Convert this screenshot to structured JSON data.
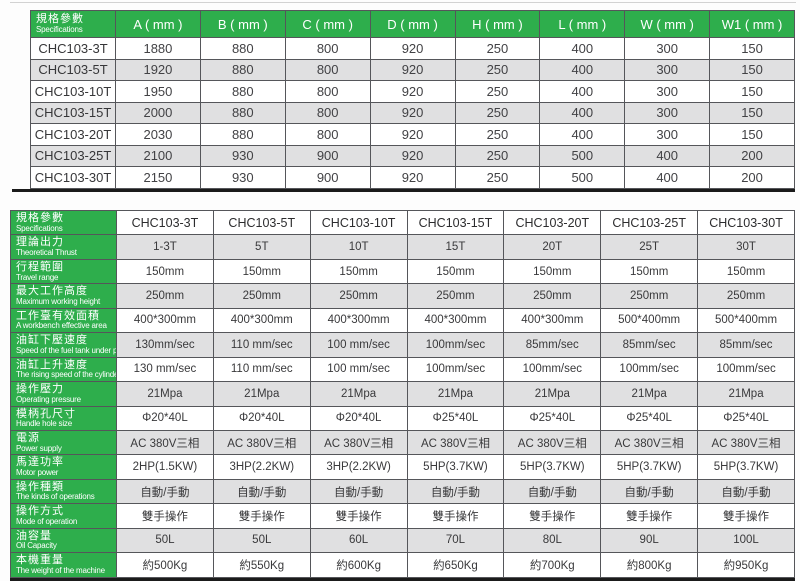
{
  "colors": {
    "green": "#2eae4c",
    "row_alt": "#e0e0e1",
    "border": "#55565a",
    "heavy_rule": "#1b1b1b"
  },
  "table1": {
    "spec_header": {
      "zh": "規格參數",
      "en": "Specifications"
    },
    "columns": [
      "A ( mm )",
      "B ( mm )",
      "C ( mm )",
      "D ( mm )",
      "H ( mm )",
      "L ( mm )",
      "W ( mm )",
      "W1 ( mm )"
    ],
    "rows": [
      {
        "label": "CHC103-3T",
        "values": [
          "1880",
          "880",
          "800",
          "920",
          "250",
          "400",
          "300",
          "150"
        ]
      },
      {
        "label": "CHC103-5T",
        "values": [
          "1920",
          "880",
          "800",
          "920",
          "250",
          "400",
          "300",
          "150"
        ]
      },
      {
        "label": "CHC103-10T",
        "values": [
          "1950",
          "880",
          "800",
          "920",
          "250",
          "400",
          "300",
          "150"
        ]
      },
      {
        "label": "CHC103-15T",
        "values": [
          "2000",
          "880",
          "800",
          "920",
          "250",
          "400",
          "300",
          "150"
        ]
      },
      {
        "label": "CHC103-20T",
        "values": [
          "2030",
          "880",
          "800",
          "920",
          "250",
          "400",
          "300",
          "150"
        ]
      },
      {
        "label": "CHC103-25T",
        "values": [
          "2100",
          "930",
          "900",
          "920",
          "250",
          "500",
          "400",
          "200"
        ]
      },
      {
        "label": "CHC103-30T",
        "values": [
          "2150",
          "930",
          "900",
          "920",
          "250",
          "500",
          "400",
          "200"
        ]
      }
    ]
  },
  "table2": {
    "spec_header": {
      "zh": "規格參數",
      "en": "Specifications"
    },
    "columns": [
      "CHC103-3T",
      "CHC103-5T",
      "CHC103-10T",
      "CHC103-15T",
      "CHC103-20T",
      "CHC103-25T",
      "CHC103-30T"
    ],
    "rows": [
      {
        "zh": "理論出力",
        "en": "Theoretical Thrust",
        "values": [
          "1-3T",
          "5T",
          "10T",
          "15T",
          "20T",
          "25T",
          "30T"
        ]
      },
      {
        "zh": "行程範圍",
        "en": "Travel range",
        "values": [
          "150mm",
          "150mm",
          "150mm",
          "150mm",
          "150mm",
          "150mm",
          "150mm"
        ]
      },
      {
        "zh": "最大工作高度",
        "en": "Maximum working height",
        "values": [
          "250mm",
          "250mm",
          "250mm",
          "250mm",
          "250mm",
          "250mm",
          "250mm"
        ]
      },
      {
        "zh": "工作臺有效面積",
        "en": "A workbench effective area",
        "values": [
          "400*300mm",
          "400*300mm",
          "400*300mm",
          "400*300mm",
          "400*300mm",
          "500*400mm",
          "500*400mm"
        ]
      },
      {
        "zh": "油缸下壓速度",
        "en": "Speed of the fuel tank under pressure",
        "values": [
          "130mm/sec",
          "110 mm/sec",
          "100 mm/sec",
          "100mm/sec",
          "85mm/sec",
          "85mm/sec",
          "85mm/sec"
        ]
      },
      {
        "zh": "油缸上升速度",
        "en": "The rising speed of the cylinder",
        "values": [
          "130 mm/sec",
          "110 mm/sec",
          "100 mm/sec",
          "100mm/sec",
          "100mm/sec",
          "100mm/sec",
          "100mm/sec"
        ]
      },
      {
        "zh": "操作壓力",
        "en": "Operating pressure",
        "values": [
          "21Mpa",
          "21Mpa",
          "21Mpa",
          "21Mpa",
          "21Mpa",
          "21Mpa",
          "21Mpa"
        ]
      },
      {
        "zh": "模柄孔尺寸",
        "en": "Handle hole size",
        "values": [
          "Φ20*40L",
          "Φ20*40L",
          "Φ20*40L",
          "Φ25*40L",
          "Φ25*40L",
          "Φ25*40L",
          "Φ25*40L"
        ]
      },
      {
        "zh": "電源",
        "en": "Power supply",
        "values": [
          "AC 380V三相",
          "AC 380V三相",
          "AC 380V三相",
          "AC 380V三相",
          "AC 380V三相",
          "AC 380V三相",
          "AC 380V三相"
        ]
      },
      {
        "zh": "馬達功率",
        "en": "Motor power",
        "values": [
          "2HP(1.5KW)",
          "3HP(2.2KW)",
          "3HP(2.2KW)",
          "5HP(3.7KW)",
          "5HP(3.7KW)",
          "5HP(3.7KW)",
          "5HP(3.7KW)"
        ]
      },
      {
        "zh": "操作種類",
        "en": "The kinds of operations",
        "values": [
          "自動/手動",
          "自動/手動",
          "自動/手動",
          "自動/手動",
          "自動/手動",
          "自動/手動",
          "自動/手動"
        ]
      },
      {
        "zh": "操作方式",
        "en": "Mode of operation",
        "values": [
          "雙手操作",
          "雙手操作",
          "雙手操作",
          "雙手操作",
          "雙手操作",
          "雙手操作",
          "雙手操作"
        ]
      },
      {
        "zh": "油容量",
        "en": "Oil Capacity",
        "values": [
          "50L",
          "50L",
          "60L",
          "70L",
          "80L",
          "90L",
          "100L"
        ]
      },
      {
        "zh": "本機重量",
        "en": "The weight of the machine",
        "values": [
          "約500Kg",
          "約550Kg",
          "約600Kg",
          "約650Kg",
          "約700Kg",
          "約800Kg",
          "約950Kg"
        ]
      }
    ]
  }
}
